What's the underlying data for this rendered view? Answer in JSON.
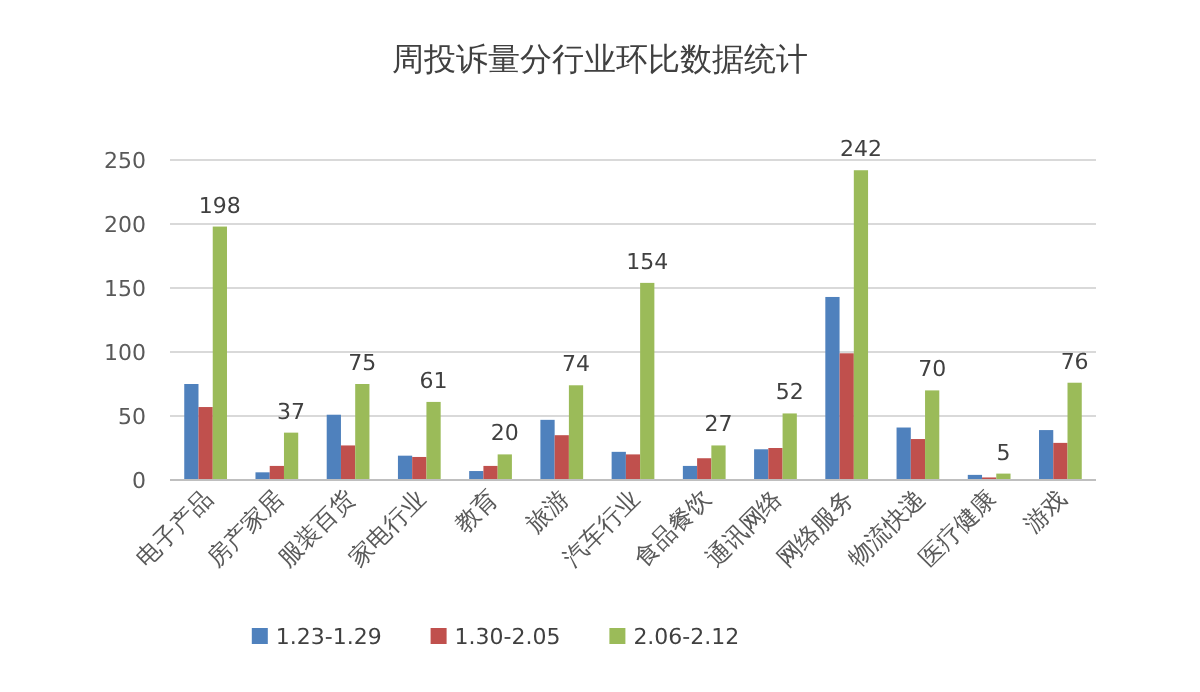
{
  "chart_data": {
    "type": "bar",
    "title": "周投诉量分行业环比数据统计",
    "categories": [
      "电子产品",
      "房产家居",
      "服装百货",
      "家电行业",
      "教育",
      "旅游",
      "汽车行业",
      "食品餐饮",
      "通讯网络",
      "网络服务",
      "物流快递",
      "医疗健康",
      "游戏"
    ],
    "series": [
      {
        "name": "1.23-1.29",
        "color": "#4f81bd",
        "values": [
          75,
          6,
          51,
          19,
          7,
          47,
          22,
          11,
          24,
          143,
          41,
          4,
          39
        ]
      },
      {
        "name": "1.30-2.05",
        "color": "#c0504d",
        "values": [
          57,
          11,
          27,
          18,
          11,
          35,
          20,
          17,
          25,
          99,
          32,
          2,
          29
        ]
      },
      {
        "name": "2.06-2.12",
        "color": "#9bbb59",
        "values": [
          198,
          37,
          75,
          61,
          20,
          74,
          154,
          27,
          52,
          242,
          70,
          5,
          76
        ],
        "value_labels": [
          "198",
          "37",
          "75",
          "61",
          "20",
          "74",
          "154",
          "27",
          "52",
          "242",
          "70",
          "5",
          "76"
        ]
      }
    ],
    "ylim": [
      0,
      250
    ],
    "yticks": [
      0,
      50,
      100,
      150,
      200,
      250
    ],
    "grid": "y",
    "legend": "bottom"
  }
}
